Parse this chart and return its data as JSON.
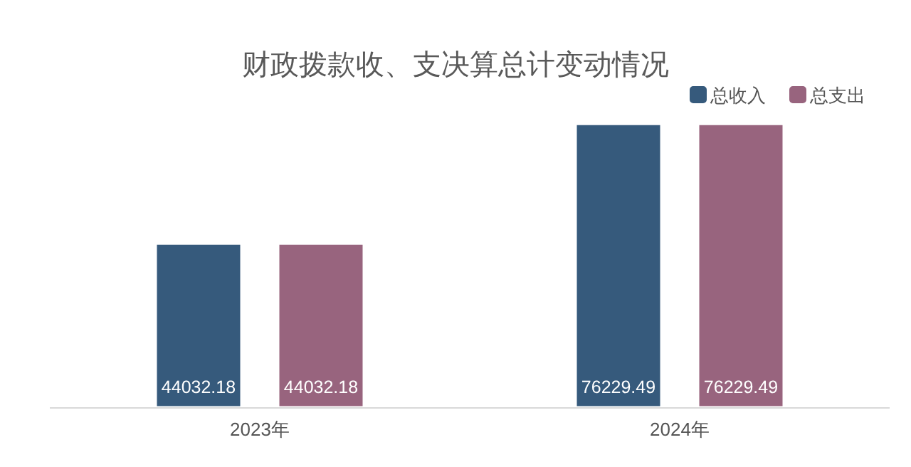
{
  "chart_data": {
    "type": "bar",
    "title": "财政拨款收、支决算总计变动情况",
    "categories": [
      "2023年",
      "2024年"
    ],
    "series": [
      {
        "name": "总收入",
        "color": "#365a7c",
        "values": [
          44032.18,
          76229.49
        ]
      },
      {
        "name": "总支出",
        "color": "#98647e",
        "values": [
          44032.18,
          76229.49
        ]
      }
    ],
    "data_labels": true,
    "legend": "top right",
    "grid": false
  }
}
